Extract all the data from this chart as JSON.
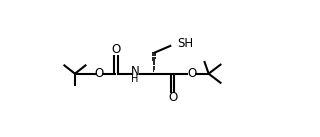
{
  "bg_color": "#ffffff",
  "line_color": "#000000",
  "lw": 1.5,
  "figsize": [
    3.2,
    1.37
  ],
  "dpi": 100,
  "xlim": [
    -0.5,
    10.5
  ],
  "ylim": [
    -0.2,
    4.2
  ]
}
